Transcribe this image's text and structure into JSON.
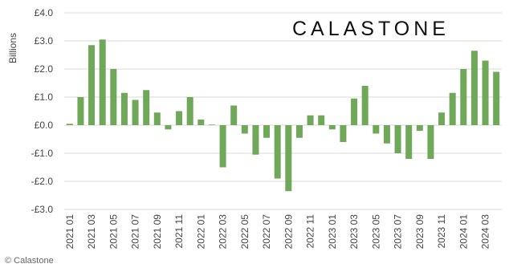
{
  "chart_data": {
    "type": "bar",
    "brand": "CALASTONE",
    "ylabel": "Billions",
    "credit": "© Calastone",
    "categories": [
      "2021 01",
      null,
      "2021 03",
      null,
      "2021 05",
      null,
      "2021 07",
      null,
      "2021 09",
      null,
      "2021 11",
      null,
      "2022 01",
      null,
      "2022 03",
      null,
      "2022 05",
      null,
      "2022 07",
      null,
      "2022 09",
      null,
      "2022 11",
      null,
      "2023 01",
      null,
      "2023 03",
      null,
      "2023 05",
      null,
      "2023 07",
      null,
      "2023 09",
      null,
      "2023 11",
      null,
      "2024 01",
      null,
      "2024 03",
      null
    ],
    "values": [
      0.05,
      1.0,
      2.85,
      3.05,
      2.0,
      1.15,
      0.9,
      1.25,
      0.45,
      -0.15,
      0.5,
      1.0,
      0.2,
      0.02,
      -1.5,
      0.7,
      -0.3,
      -1.05,
      -0.45,
      -1.9,
      -2.35,
      -0.45,
      0.35,
      0.35,
      -0.15,
      -0.6,
      0.95,
      1.4,
      -0.3,
      -0.65,
      -1.0,
      -1.2,
      -0.2,
      -1.2,
      0.45,
      1.15,
      2.0,
      2.65,
      2.3,
      1.9
    ],
    "color": "#70a85a",
    "ylim": [
      -3,
      4
    ],
    "yticks": [
      {
        "value": 4,
        "label": "£4.0"
      },
      {
        "value": 3,
        "label": "£3.0"
      },
      {
        "value": 2,
        "label": "£2.0"
      },
      {
        "value": 1,
        "label": "£1.0"
      },
      {
        "value": 0,
        "label": "£0.0"
      },
      {
        "value": -1,
        "label": "-£1.0"
      },
      {
        "value": -2,
        "label": "-£2.0"
      },
      {
        "value": -3,
        "label": "-£3.0"
      }
    ],
    "grid": true
  }
}
